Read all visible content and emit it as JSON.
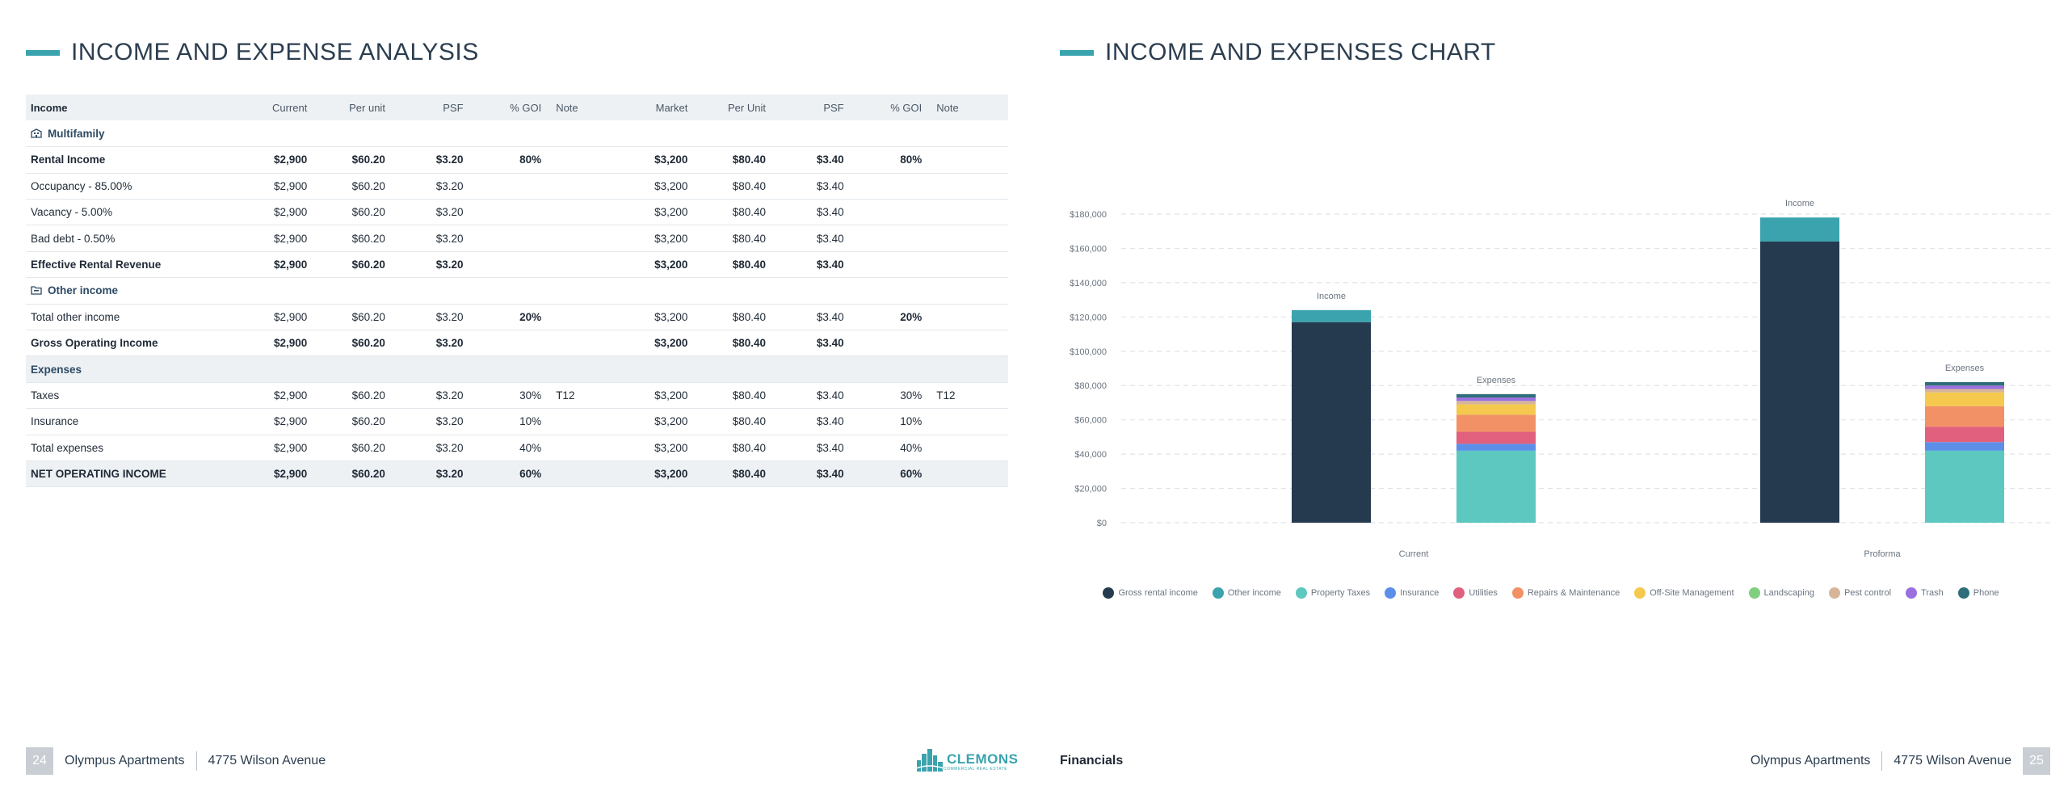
{
  "left": {
    "title": "INCOME AND EXPENSE ANALYSIS",
    "table": {
      "header": [
        "Income",
        "Current",
        "Per unit",
        "PSF",
        "% GOI",
        "Note",
        "Market",
        "Per Unit",
        "PSF",
        "% GOI",
        "Note"
      ],
      "rows": [
        {
          "type": "group",
          "icon": "building-icon",
          "label": "Multifamily"
        },
        {
          "type": "bold",
          "cells": [
            "Rental Income",
            "$2,900",
            "$60.20",
            "$3.20",
            "80%",
            "",
            "$3,200",
            "$80.40",
            "$3.40",
            "80%",
            ""
          ]
        },
        {
          "type": "normal",
          "cells": [
            "Occupancy - 85.00%",
            "$2,900",
            "$60.20",
            "$3.20",
            "",
            "",
            "$3,200",
            "$80.40",
            "$3.40",
            "",
            ""
          ]
        },
        {
          "type": "normal",
          "cells": [
            "Vacancy - 5.00%",
            "$2,900",
            "$60.20",
            "$3.20",
            "",
            "",
            "$3,200",
            "$80.40",
            "$3.40",
            "",
            ""
          ]
        },
        {
          "type": "normal",
          "cells": [
            "Bad debt - 0.50%",
            "$2,900",
            "$60.20",
            "$3.20",
            "",
            "",
            "$3,200",
            "$80.40",
            "$3.40",
            "",
            ""
          ]
        },
        {
          "type": "bold",
          "cells": [
            "Effective Rental Revenue",
            "$2,900",
            "$60.20",
            "$3.20",
            "",
            "",
            "$3,200",
            "$80.40",
            "$3.40",
            "",
            ""
          ]
        },
        {
          "type": "group",
          "icon": "folder-icon",
          "label": "Other income"
        },
        {
          "type": "normal",
          "boldGoi": true,
          "cells": [
            "Total other income",
            "$2,900",
            "$60.20",
            "$3.20",
            "20%",
            "",
            "$3,200",
            "$80.40",
            "$3.40",
            "20%",
            ""
          ]
        },
        {
          "type": "bold",
          "cells": [
            "Gross Operating Income",
            "$2,900",
            "$60.20",
            "$3.20",
            "",
            "",
            "$3,200",
            "$80.40",
            "$3.40",
            "",
            ""
          ]
        },
        {
          "type": "section",
          "label": "Expenses"
        },
        {
          "type": "normal",
          "cells": [
            "Taxes",
            "$2,900",
            "$60.20",
            "$3.20",
            "30%",
            "T12",
            "$3,200",
            "$80.40",
            "$3.40",
            "30%",
            "T12"
          ]
        },
        {
          "type": "normal",
          "cells": [
            "Insurance",
            "$2,900",
            "$60.20",
            "$3.20",
            "10%",
            "",
            "$3,200",
            "$80.40",
            "$3.40",
            "10%",
            ""
          ]
        },
        {
          "type": "normal",
          "cells": [
            "Total expenses",
            "$2,900",
            "$60.20",
            "$3.20",
            "40%",
            "",
            "$3,200",
            "$80.40",
            "$3.40",
            "40%",
            ""
          ]
        },
        {
          "type": "total",
          "cells": [
            "NET OPERATING INCOME",
            "$2,900",
            "$60.20",
            "$3.20",
            "60%",
            "",
            "$3,200",
            "$80.40",
            "$3.40",
            "60%",
            ""
          ]
        }
      ]
    },
    "footer": {
      "page_number": "24",
      "property": "Olympus Apartments",
      "address": "4775 Wilson Avenue",
      "logo_text": "CLEMONS",
      "logo_sub": "COMMERCIAL REAL ESTATE"
    }
  },
  "right": {
    "title": "INCOME AND EXPENSES CHART",
    "footer": {
      "section": "Financials",
      "property": "Olympus Apartments",
      "address": "4775 Wilson Avenue",
      "page_number": "25"
    }
  },
  "colors": {
    "accent": "#3aa3ad",
    "navy": "#263a4f"
  },
  "chart_data": {
    "type": "bar",
    "stacked": true,
    "categories": [
      "Current",
      "Proforma"
    ],
    "ylim": [
      0,
      180000
    ],
    "yticks": [
      0,
      20000,
      40000,
      60000,
      80000,
      100000,
      120000,
      140000,
      160000,
      180000
    ],
    "ytick_labels": [
      "$0",
      "$20,000",
      "$40,000",
      "$60,000",
      "$80,000",
      "$100,000",
      "$120,000",
      "$140,000",
      "$160,000",
      "$180,000"
    ],
    "grid": true,
    "legend_position": "bottom",
    "stacks": [
      {
        "label": "Income",
        "series": [
          "Gross rental income",
          "Other income"
        ]
      },
      {
        "label": "Expenses",
        "series": [
          "Property Taxes",
          "Insurance",
          "Utilities",
          "Repairs & Maintenance",
          "Off-Site Management",
          "Landscaping",
          "Pest control",
          "Trash",
          "Phone"
        ]
      }
    ],
    "series": [
      {
        "name": "Gross rental income",
        "color": "#263a4f",
        "stack": "Income",
        "values": [
          117000,
          164000
        ]
      },
      {
        "name": "Other income",
        "color": "#3aa3ad",
        "stack": "Income",
        "values": [
          7000,
          14000
        ]
      },
      {
        "name": "Property Taxes",
        "color": "#5cc8c0",
        "stack": "Expenses",
        "values": [
          42000,
          42000
        ]
      },
      {
        "name": "Insurance",
        "color": "#5b8fe8",
        "stack": "Expenses",
        "values": [
          4000,
          5000
        ]
      },
      {
        "name": "Utilities",
        "color": "#e0607e",
        "stack": "Expenses",
        "values": [
          7000,
          9000
        ]
      },
      {
        "name": "Repairs & Maintenance",
        "color": "#f29166",
        "stack": "Expenses",
        "values": [
          10000,
          12000
        ]
      },
      {
        "name": "Off-Site Management",
        "color": "#f4c94d",
        "stack": "Expenses",
        "values": [
          6000,
          8000
        ]
      },
      {
        "name": "Landscaping",
        "color": "#7fcf7f",
        "stack": "Expenses",
        "values": [
          0,
          0
        ]
      },
      {
        "name": "Pest control",
        "color": "#d6b69a",
        "stack": "Expenses",
        "values": [
          2000,
          2000
        ]
      },
      {
        "name": "Trash",
        "color": "#9b6fe0",
        "stack": "Expenses",
        "values": [
          2000,
          2000
        ]
      },
      {
        "name": "Phone",
        "color": "#2e6e7a",
        "stack": "Expenses",
        "values": [
          2000,
          2000
        ]
      }
    ]
  }
}
